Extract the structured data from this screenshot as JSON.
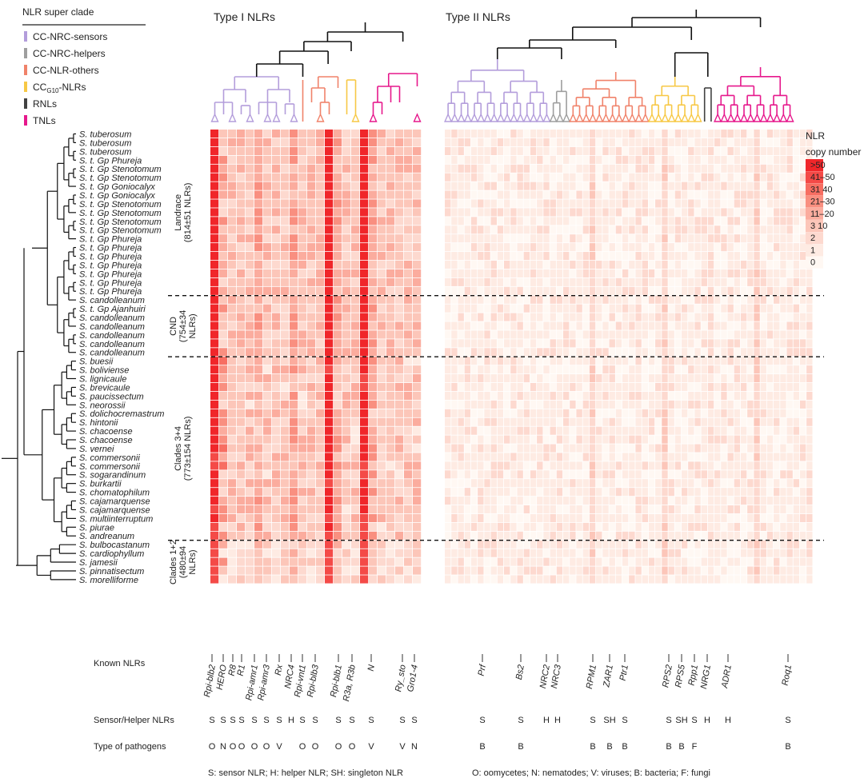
{
  "legend": {
    "title": "NLR super clade",
    "items": [
      {
        "label": "CC-NRC-sensors",
        "color": "#b39ddb"
      },
      {
        "label": "CC-NRC-helpers",
        "color": "#9e9e9e"
      },
      {
        "label": "CC-NLR-others",
        "color": "#f0826a"
      },
      {
        "label": "CC",
        "sub": "G10",
        "suffix": "-NLRs",
        "color": "#f7c845"
      },
      {
        "label": "RNLs",
        "color": "#424242"
      },
      {
        "label": "TNLs",
        "color": "#e6188c"
      }
    ]
  },
  "headers": {
    "type1": "Type I NLRs",
    "type2": "Type II NLRs"
  },
  "colorbar": {
    "title_line1": "NLR",
    "title_line2": "copy number",
    "labels": [
      ">50",
      "41–50",
      "31  40",
      "21–30",
      "11–20",
      "3  10",
      "2",
      "1",
      "0"
    ],
    "colors": [
      "#f0262a",
      "#f44a47",
      "#f76e62",
      "#f98f80",
      "#fbac9e",
      "#fcc6b9",
      "#fdd9cf",
      "#feebe3",
      "#fff8f3"
    ]
  },
  "taxa": [
    "S. tuberosum",
    "S. tuberosum",
    "S. tuberosum",
    "S. t. Gp Phureja",
    "S. t. Gp Stenotomum",
    "S. t. Gp Stenotomum",
    "S. t. Gp Goniocalyx",
    "S. t. Gp Goniocalyx",
    "S. t. Gp Stenotomum",
    "S. t. Gp Stenotomum",
    "S. t. Gp Stenotomum",
    "S. t. Gp Stenotomum",
    "S. t. Gp Phureja",
    "S. t. Gp Phureja",
    "S. t. Gp Phureja",
    "S. t. Gp Phureja",
    "S. t. Gp Phureja",
    "S. t. Gp Phureja",
    "S. t. Gp Phureja",
    "S. candolleanum",
    "S. t. Gp Ajanhuiri",
    "S. candolleanum",
    "S. candolleanum",
    "S. candolleanum",
    "S. candolleanum",
    "S. candolleanum",
    "S. buesii",
    "S. boliviense",
    "S. lignicaule",
    "S. brevicaule",
    "S. paucissectum",
    "S. neorossii",
    "S. dolichocremastrum",
    "S. hintonii",
    "S. chacoense",
    "S. chacoense",
    "S. vernei",
    "S. commersonii",
    "S. commersonii",
    "S. sogarandinum",
    "S. burkartii",
    "S. chomatophilum",
    "S. cajamarquense",
    "S. cajamarquense",
    "S. multiinterruptum",
    "S. piurae",
    "S. andreanum",
    "S. bulbocastanum",
    "S. cardiophyllum",
    "S. jamesii",
    "S. pinnatisectum",
    "S. morelliforme"
  ],
  "groups": [
    {
      "line1": "Landrace",
      "line2": "(814±51 NLRs)"
    },
    {
      "line1": "CND",
      "line2": "(754±34",
      "line3": "NLRs)"
    },
    {
      "line1": "Clades 3+4",
      "line2": "(773±154 NLRs)"
    },
    {
      "line1": "Clades 1+2",
      "line2": "(480±94",
      "line3": "NLRs)"
    }
  ],
  "known_title": "Known NLRs",
  "known": [
    {
      "name": "Rpi-blb2",
      "role": "S",
      "path": "O"
    },
    {
      "name": "HERO",
      "role": "S",
      "path": "N"
    },
    {
      "name": "R8",
      "role": "S",
      "path": "O"
    },
    {
      "name": "R1",
      "role": "S",
      "path": "O"
    },
    {
      "name": "Rpi-amr1",
      "role": "S",
      "path": "O"
    },
    {
      "name": "Rpi-amr3",
      "role": "S",
      "path": "O"
    },
    {
      "name": "Rx",
      "role": "S",
      "path": "V"
    },
    {
      "name": "NRC4",
      "role": "H",
      "path": ""
    },
    {
      "name": "Rpi-vnt1",
      "role": "S",
      "path": "O"
    },
    {
      "name": "Rpi-blb3",
      "role": "S",
      "path": "O"
    },
    {
      "name": "Rpi-blb1",
      "role": "S",
      "path": "O"
    },
    {
      "name": "R3a, R3b",
      "role": "S",
      "path": "O"
    },
    {
      "name": "N",
      "role": "S",
      "path": "V"
    },
    {
      "name": "Ry_sto",
      "role": "S",
      "path": "V"
    },
    {
      "name": "Gro1-4",
      "role": "S",
      "path": "N"
    },
    {
      "name": "Prf",
      "role": "S",
      "path": "B"
    },
    {
      "name": "Bs2",
      "role": "S",
      "path": "B"
    },
    {
      "name": "NRC2",
      "role": "H",
      "path": ""
    },
    {
      "name": "NRC3",
      "role": "H",
      "path": ""
    },
    {
      "name": "RPM1",
      "role": "S",
      "path": "B"
    },
    {
      "name": "ZAR1",
      "role": "SH",
      "path": "B"
    },
    {
      "name": "Ptr1",
      "role": "S",
      "path": "B"
    },
    {
      "name": "RPS2",
      "role": "S",
      "path": "B"
    },
    {
      "name": "RPS5",
      "role": "SH",
      "path": "B"
    },
    {
      "name": "Rpp1",
      "role": "S",
      "path": "F"
    },
    {
      "name": "NRG1",
      "role": "H",
      "path": ""
    },
    {
      "name": "ADR1",
      "role": "H",
      "path": ""
    },
    {
      "name": "Roq1",
      "role": "S",
      "path": "B"
    }
  ],
  "row_titles": {
    "role": "Sensor/Helper NLRs",
    "path": "Type of pathogens"
  },
  "footnote_left": "S: sensor NLR;  H: helper NLR;  SH: singleton NLR",
  "footnote_right": "O: oomycetes;  N: nematodes;  V: viruses;  B: bacteria;  F: fungi",
  "chart_data": {
    "type": "heatmap",
    "rows": 52,
    "type1_columns": 24,
    "type2_columns": 56,
    "note": "Cell values are NLR copy-number classes (0=0, 1=1, 2=2, 3=3–10, 4=11–20, 5=21–30, 6=31–40, 7=41–50, 8=>50)"
  }
}
